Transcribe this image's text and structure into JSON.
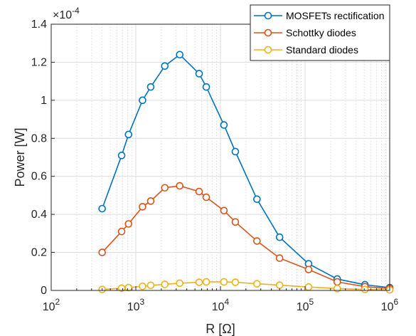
{
  "chart_data": {
    "type": "line",
    "xscale": "log",
    "xlim": [
      100,
      1000000
    ],
    "ylim": [
      0,
      1.4
    ],
    "y_multiplier_label": "×10",
    "y_multiplier_exp": "-4",
    "xlabel": "R [Ω]",
    "ylabel": "Power [W]",
    "x_ticks": [
      {
        "base": "10",
        "exp": "2"
      },
      {
        "base": "10",
        "exp": "3"
      },
      {
        "base": "10",
        "exp": "4"
      },
      {
        "base": "10",
        "exp": "5"
      },
      {
        "base": "10",
        "exp": "6"
      }
    ],
    "y_ticks": [
      "0",
      "0.2",
      "0.4",
      "0.6",
      "0.8",
      "1",
      "1.2",
      "1.4"
    ],
    "grid": "on (minor x grid dotted)",
    "legend_position": "top-right",
    "x": [
      400,
      680,
      820,
      1200,
      1500,
      2200,
      3300,
      5600,
      6800,
      11000,
      15000,
      27000,
      50000,
      110000,
      240000,
      510000,
      1000000
    ],
    "series": [
      {
        "name": "MOSFETs rectification",
        "color": "#0072BD",
        "values": [
          0.43,
          0.71,
          0.82,
          1.0,
          1.07,
          1.18,
          1.24,
          1.14,
          1.07,
          0.87,
          0.73,
          0.48,
          0.28,
          0.14,
          0.06,
          0.03,
          0.015
        ]
      },
      {
        "name": "Schottky diodes",
        "color": "#D95319",
        "values": [
          0.2,
          0.31,
          0.35,
          0.44,
          0.47,
          0.54,
          0.55,
          0.52,
          0.49,
          0.42,
          0.36,
          0.26,
          0.17,
          0.11,
          0.045,
          0.02,
          0.01
        ]
      },
      {
        "name": "Standard diodes",
        "color": "#EDB120",
        "values": [
          0.005,
          0.012,
          0.015,
          0.022,
          0.027,
          0.032,
          0.038,
          0.043,
          0.045,
          0.045,
          0.043,
          0.035,
          0.028,
          0.018,
          0.01,
          0.005,
          0.003
        ]
      }
    ]
  }
}
